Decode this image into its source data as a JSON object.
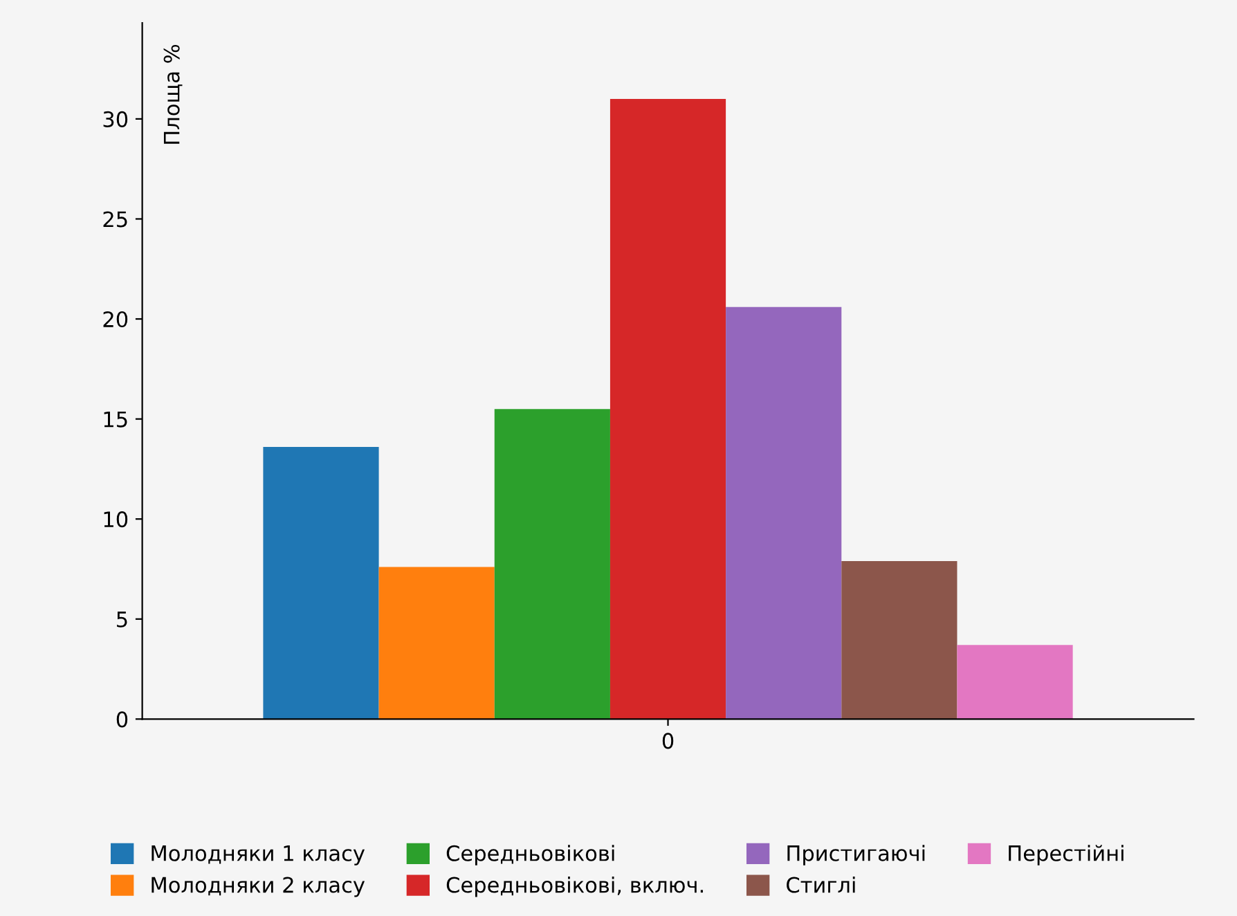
{
  "chart_data": {
    "type": "bar",
    "ylabel": "Площа %",
    "categories": [
      "0"
    ],
    "series": [
      {
        "name": "Молодняки 1 класу",
        "color": "#1f77b4",
        "values": [
          13.6
        ]
      },
      {
        "name": "Молодняки 2 класу",
        "color": "#ff7f0e",
        "values": [
          7.6
        ]
      },
      {
        "name": "Середньовікові",
        "color": "#2ca02c",
        "values": [
          15.5
        ]
      },
      {
        "name": "Середньовікові, включ.",
        "color": "#d62728",
        "values": [
          31.0
        ]
      },
      {
        "name": "Пристигаючі",
        "color": "#9467bd",
        "values": [
          20.6
        ]
      },
      {
        "name": "Стиглі",
        "color": "#8c564b",
        "values": [
          7.9
        ]
      },
      {
        "name": "Перестійні",
        "color": "#e377c2",
        "values": [
          3.7
        ]
      }
    ],
    "ylim": [
      0,
      34.8
    ],
    "yticks": [
      0,
      5,
      10,
      15,
      20,
      25,
      30
    ],
    "grid": false,
    "legend": "bottom"
  }
}
